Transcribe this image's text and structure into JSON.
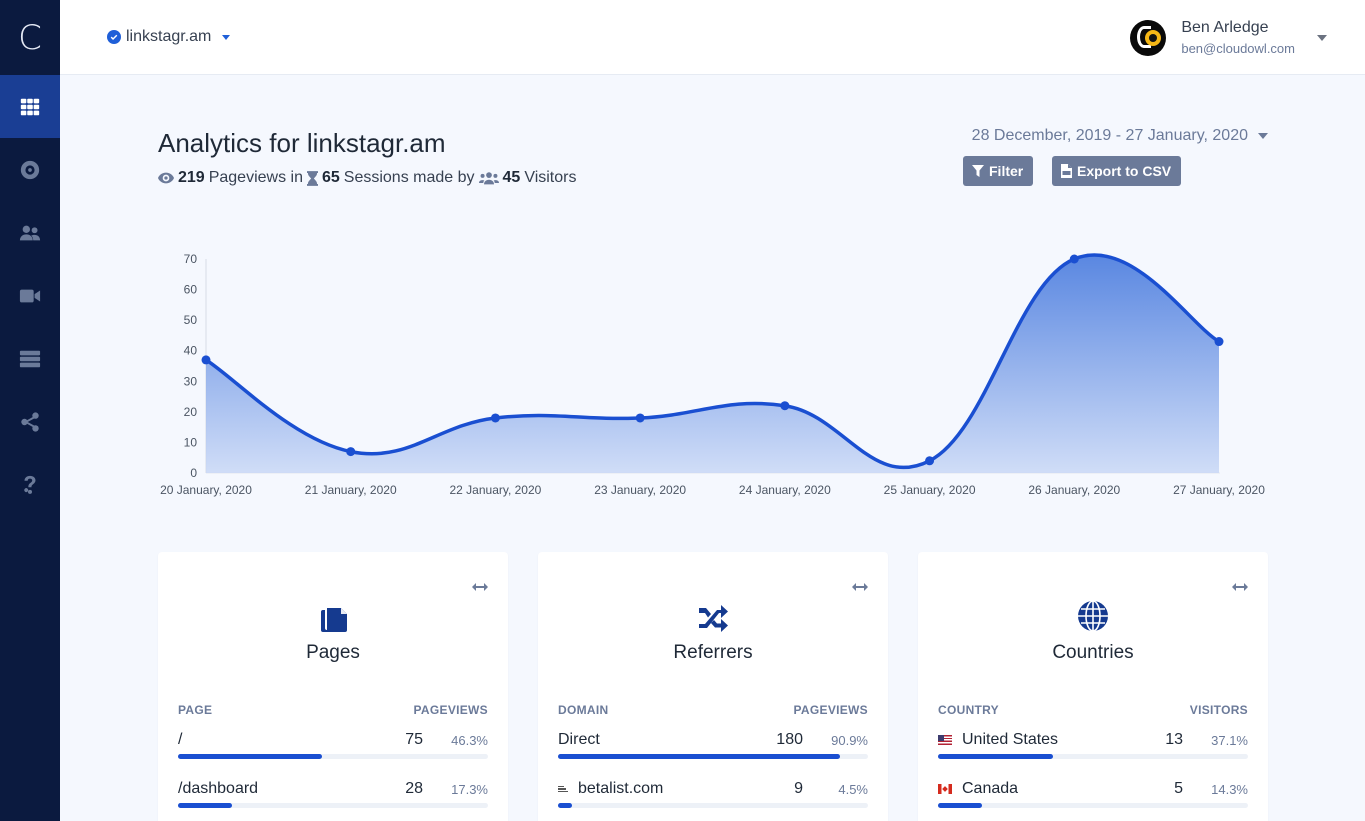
{
  "app": {
    "logo_letter": "C"
  },
  "sidebar": {
    "items": [
      {
        "name": "dashboard",
        "icon": "grid-icon",
        "active": true
      },
      {
        "name": "goals",
        "icon": "target-icon",
        "active": false
      },
      {
        "name": "visitors",
        "icon": "users-icon",
        "active": false
      },
      {
        "name": "recordings",
        "icon": "video-icon",
        "active": false
      },
      {
        "name": "sites",
        "icon": "server-icon",
        "active": false
      },
      {
        "name": "share",
        "icon": "share-icon",
        "active": false
      },
      {
        "name": "help",
        "icon": "question-icon",
        "active": false
      }
    ]
  },
  "topbar": {
    "site_name": "linkstagr.am",
    "user_name": "Ben Arledge",
    "user_email": "ben@cloudowl.com"
  },
  "header": {
    "title": "Analytics for linkstagr.am",
    "pageviews": "219",
    "pageviews_label": "Pageviews in",
    "sessions": "65",
    "sessions_label": "Sessions made by",
    "visitors": "45",
    "visitors_label": "Visitors",
    "date_range": "28 December, 2019 - 27 January, 2020",
    "filter_label": "Filter",
    "export_label": "Export to CSV"
  },
  "colors": {
    "accent": "#1a4fd1",
    "sidebar": "#0b1a3f",
    "sidebar_active": "#1a3e94",
    "button": "#6b7a99"
  },
  "chart_data": {
    "type": "area",
    "title": "",
    "xlabel": "",
    "ylabel": "",
    "categories": [
      "20 January, 2020",
      "21 January, 2020",
      "22 January, 2020",
      "23 January, 2020",
      "24 January, 2020",
      "25 January, 2020",
      "26 January, 2020",
      "27 January, 2020"
    ],
    "values": [
      37,
      7,
      18,
      18,
      22,
      4,
      70,
      43
    ],
    "yticks": [
      0,
      10,
      20,
      30,
      40,
      50,
      60,
      70
    ],
    "ylim": [
      0,
      70
    ],
    "grid": false,
    "legend": "none"
  },
  "cards": [
    {
      "title": "Pages",
      "icon": "copy-icon",
      "col_label": "PAGE",
      "col_value": "PAGEVIEWS",
      "rows": [
        {
          "label": "/",
          "count": "75",
          "pct": "46.3%",
          "fill": 46.3
        },
        {
          "label": "/dashboard",
          "count": "28",
          "pct": "17.3%",
          "fill": 17.3
        }
      ]
    },
    {
      "title": "Referrers",
      "icon": "shuffle-icon",
      "col_label": "DOMAIN",
      "col_value": "PAGEVIEWS",
      "rows": [
        {
          "label": "Direct",
          "count": "180",
          "pct": "90.9%",
          "fill": 90.9
        },
        {
          "label": "betalist.com",
          "count": "9",
          "pct": "4.5%",
          "fill": 4.5
        }
      ]
    },
    {
      "title": "Countries",
      "icon": "globe-icon",
      "col_label": "COUNTRY",
      "col_value": "VISITORS",
      "rows": [
        {
          "label": "United States",
          "count": "13",
          "pct": "37.1%",
          "fill": 37.1
        },
        {
          "label": "Canada",
          "count": "5",
          "pct": "14.3%",
          "fill": 14.3
        }
      ]
    }
  ]
}
